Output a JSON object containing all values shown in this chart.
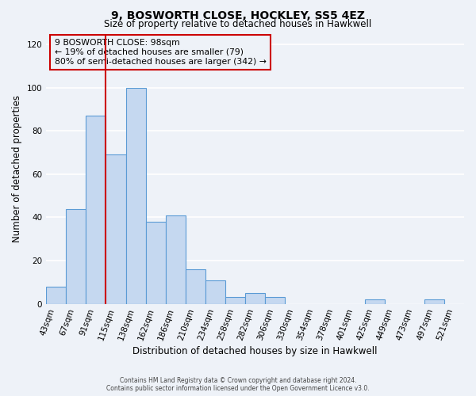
{
  "title": "9, BOSWORTH CLOSE, HOCKLEY, SS5 4EZ",
  "subtitle": "Size of property relative to detached houses in Hawkwell",
  "xlabel": "Distribution of detached houses by size in Hawkwell",
  "ylabel": "Number of detached properties",
  "footer_line1": "Contains HM Land Registry data © Crown copyright and database right 2024.",
  "footer_line2": "Contains public sector information licensed under the Open Government Licence v3.0.",
  "annotation_line1": "9 BOSWORTH CLOSE: 98sqm",
  "annotation_line2": "← 19% of detached houses are smaller (79)",
  "annotation_line3": "80% of semi-detached houses are larger (342) →",
  "bar_labels": [
    "43sqm",
    "67sqm",
    "91sqm",
    "115sqm",
    "138sqm",
    "162sqm",
    "186sqm",
    "210sqm",
    "234sqm",
    "258sqm",
    "282sqm",
    "306sqm",
    "330sqm",
    "354sqm",
    "378sqm",
    "401sqm",
    "425sqm",
    "449sqm",
    "473sqm",
    "497sqm",
    "521sqm"
  ],
  "bar_values": [
    8,
    44,
    87,
    69,
    100,
    38,
    41,
    16,
    11,
    3,
    5,
    3,
    0,
    0,
    0,
    0,
    2,
    0,
    0,
    2,
    0
  ],
  "bar_color": "#c5d8f0",
  "bar_edge_color": "#5b9bd5",
  "vline_x_index": 2,
  "vline_color": "#cc0000",
  "ylim": [
    0,
    125
  ],
  "yticks": [
    0,
    20,
    40,
    60,
    80,
    100,
    120
  ],
  "annotation_box_edge_color": "#cc0000",
  "background_color": "#eef2f8",
  "grid_color": "#ffffff"
}
